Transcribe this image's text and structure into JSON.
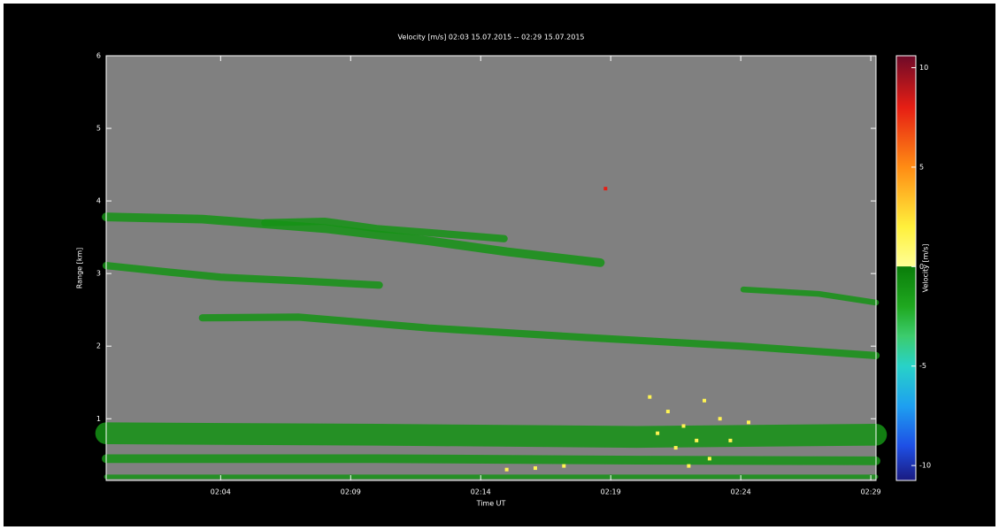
{
  "chart_data": {
    "type": "heatmap",
    "title": "Velocity [m/s]   02:03 15.07.2015 -- 02:29 15.07.2015",
    "xlabel": "Time UT",
    "ylabel": "Range [km]",
    "colorbar_label": "Velocity [m/s]",
    "background": "#808080",
    "xlim": [
      -0.4,
      29.2
    ],
    "ylim": [
      0.15,
      6
    ],
    "xticks": [
      {
        "value": 4,
        "label": "02:04"
      },
      {
        "value": 9,
        "label": "02:09"
      },
      {
        "value": 14,
        "label": "02:14"
      },
      {
        "value": 19,
        "label": "02:19"
      },
      {
        "value": 24,
        "label": "02:24"
      },
      {
        "value": 29,
        "label": "02:29"
      }
    ],
    "yticks": [
      1,
      2,
      3,
      4,
      5,
      6
    ],
    "clim": [
      -10.75,
      10.6
    ],
    "cticks": [
      -10,
      -5,
      0,
      5,
      10
    ],
    "colormap": [
      {
        "value": -10.75,
        "color": "#1a1a80"
      },
      {
        "value": -9,
        "color": "#1e50e6"
      },
      {
        "value": -7,
        "color": "#1ea0f0"
      },
      {
        "value": -5,
        "color": "#28d2c8"
      },
      {
        "value": -3.5,
        "color": "#3ccc6e"
      },
      {
        "value": -2,
        "color": "#1fa81f"
      },
      {
        "value": 0,
        "color": "#0a7d0a"
      },
      {
        "value": 0.01,
        "color": "#ffff96"
      },
      {
        "value": 2,
        "color": "#fff03c"
      },
      {
        "value": 5,
        "color": "#ff8c14"
      },
      {
        "value": 8,
        "color": "#e61e14"
      },
      {
        "value": 10.6,
        "color": "#6e0a28"
      }
    ],
    "layers": [
      {
        "x": [
          -0.4,
          3.3,
          8,
          12,
          15,
          18.6
        ],
        "values": [
          3.78,
          3.75,
          3.62,
          3.45,
          3.3,
          3.15
        ],
        "thickness": 0.12,
        "velocity": -1
      },
      {
        "x": [
          5.7,
          8,
          10,
          12.5,
          14.9
        ],
        "values": [
          3.7,
          3.72,
          3.62,
          3.55,
          3.48
        ],
        "thickness": 0.1,
        "velocity": -1
      },
      {
        "x": [
          -0.4,
          2,
          4,
          7,
          10.1
        ],
        "values": [
          3.11,
          3.02,
          2.95,
          2.9,
          2.84
        ],
        "thickness": 0.1,
        "velocity": -1
      },
      {
        "x": [
          3.3,
          7,
          12,
          18,
          24,
          29.2
        ],
        "values": [
          2.39,
          2.4,
          2.25,
          2.12,
          2.0,
          1.87
        ],
        "thickness": 0.1,
        "velocity": -1
      },
      {
        "x": [
          24.1,
          27,
          29.2
        ],
        "values": [
          2.78,
          2.72,
          2.6
        ],
        "thickness": 0.08,
        "velocity": -1
      },
      {
        "x": [
          -0.4,
          10,
          20,
          29.2
        ],
        "values": [
          0.8,
          0.78,
          0.75,
          0.78
        ],
        "thickness": 0.3,
        "velocity": -1
      },
      {
        "x": [
          -0.4,
          10,
          20,
          29.2
        ],
        "values": [
          0.45,
          0.45,
          0.43,
          0.42
        ],
        "thickness": 0.12,
        "velocity": -1
      },
      {
        "x": [
          -0.4,
          29.2
        ],
        "values": [
          0.2,
          0.2
        ],
        "thickness": 0.06,
        "velocity": -1
      }
    ],
    "points": [
      {
        "x": 18.8,
        "y": 4.17,
        "velocity": 8
      },
      {
        "x": 20.5,
        "y": 1.3,
        "velocity": 1.5
      },
      {
        "x": 21.2,
        "y": 1.1,
        "velocity": 1.5
      },
      {
        "x": 21.8,
        "y": 0.9,
        "velocity": 1.5
      },
      {
        "x": 22.3,
        "y": 0.7,
        "velocity": 1.5
      },
      {
        "x": 22.8,
        "y": 0.45,
        "velocity": 1.5
      },
      {
        "x": 23.2,
        "y": 1.0,
        "velocity": 1.5
      },
      {
        "x": 21.5,
        "y": 0.6,
        "velocity": 1.5
      },
      {
        "x": 20.8,
        "y": 0.8,
        "velocity": 1.5
      },
      {
        "x": 22.6,
        "y": 1.25,
        "velocity": 1.5
      },
      {
        "x": 23.6,
        "y": 0.7,
        "velocity": 1.5
      },
      {
        "x": 24.3,
        "y": 0.95,
        "velocity": 1.5
      },
      {
        "x": 16.1,
        "y": 0.32,
        "velocity": 1.5
      },
      {
        "x": 17.2,
        "y": 0.35,
        "velocity": 1.5
      },
      {
        "x": 15.0,
        "y": 0.3,
        "velocity": 1.5
      },
      {
        "x": 22.0,
        "y": 0.35,
        "velocity": 1.5
      }
    ]
  }
}
